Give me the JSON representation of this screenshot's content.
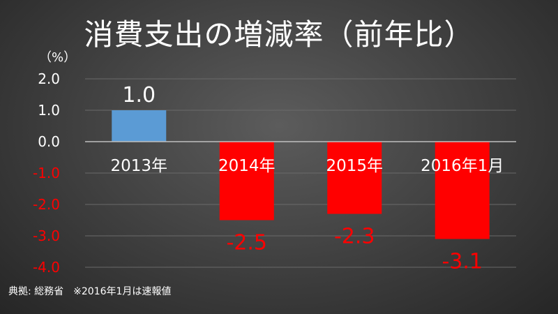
{
  "title": "消費支出の増減率（前年比）",
  "unit_label": "（%）",
  "source_note": "典拠: 総務省　※2016年1月は速報値",
  "colors": {
    "positive_bar": "#5b9bd5",
    "negative_bar": "#ff0000",
    "positive_text": "#ffffff",
    "negative_text": "#ff0000",
    "grid": "#6a6a6a",
    "axis": "#bfbfbf"
  },
  "chart_data": {
    "type": "bar",
    "title": "消費支出の増減率（前年比）",
    "ylabel": "（%）",
    "xlabel": "",
    "categories": [
      "2013年",
      "2014年",
      "2015年",
      "2016年1月"
    ],
    "values": [
      1.0,
      -2.5,
      -2.3,
      -3.1
    ],
    "value_labels": [
      "1.0",
      "-2.5",
      "-2.3",
      "-3.1"
    ],
    "ylim": [
      -4.0,
      2.0
    ],
    "yticks": [
      2.0,
      1.0,
      0.0,
      -1.0,
      -2.0,
      -3.0,
      -4.0
    ],
    "ytick_labels": [
      "2.0",
      "1.0",
      "0.0",
      "-1.0",
      "-2.0",
      "-3.0",
      "-4.0"
    ],
    "grid": true,
    "legend": "none"
  }
}
